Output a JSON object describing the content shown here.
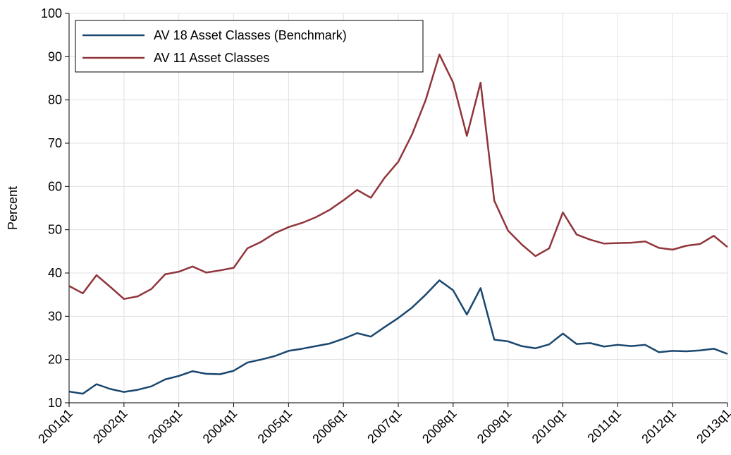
{
  "chart_data": {
    "type": "line",
    "y_label": "Percent",
    "categories": [
      "2001q1",
      null,
      null,
      null,
      "2002q1",
      null,
      null,
      null,
      "2003q1",
      null,
      null,
      null,
      "2004q1",
      null,
      null,
      null,
      "2005q1",
      null,
      null,
      null,
      "2006q1",
      null,
      null,
      null,
      "2007q1",
      null,
      null,
      null,
      "2008q1",
      null,
      null,
      null,
      "2009q1",
      null,
      null,
      null,
      "2010q1",
      null,
      null,
      null,
      "2011q1",
      null,
      null,
      null,
      "2012q1",
      null,
      null,
      null,
      "2013q1"
    ],
    "series": [
      {
        "name": "AV 18 Asset Classes (Benchmark)",
        "color": "#1a476f",
        "values": [
          12.6,
          12.1,
          14.3,
          13.2,
          12.5,
          13,
          13.8,
          15.4,
          16.2,
          17.3,
          16.7,
          16.6,
          17.4,
          19.3,
          20,
          20.8,
          22,
          22.5,
          23.1,
          23.7,
          24.8,
          26.1,
          25.3,
          27.5,
          29.6,
          32,
          35,
          38.3,
          36,
          30.4,
          36.5,
          24.6,
          24.2,
          23.1,
          22.6,
          23.5,
          26,
          23.6,
          23.8,
          23,
          23.4,
          23.1,
          23.4,
          21.7,
          22,
          21.9,
          22.1,
          22.5,
          21.3
        ]
      },
      {
        "name": "AV 11 Asset Classes",
        "color": "#90353b",
        "values": [
          37,
          35.3,
          39.5,
          36.8,
          34,
          34.6,
          36.3,
          39.7,
          40.3,
          41.5,
          40.1,
          40.6,
          41.2,
          45.7,
          47.2,
          49.2,
          50.6,
          51.6,
          52.9,
          54.6,
          56.8,
          59.2,
          57.4,
          62,
          65.7,
          72,
          80,
          90.5,
          84,
          71.7,
          84,
          56.7,
          49.8,
          46.6,
          43.9,
          45.7,
          54,
          48.9,
          47.7,
          46.8,
          46.9,
          47,
          47.3,
          45.8,
          45.4,
          46.3,
          46.7,
          48.6,
          46
        ]
      }
    ],
    "ylim": [
      10,
      100
    ],
    "yticks": [
      10,
      20,
      30,
      40,
      50,
      60,
      70,
      80,
      90,
      100
    ],
    "grid": true,
    "legend": "upper-left"
  }
}
